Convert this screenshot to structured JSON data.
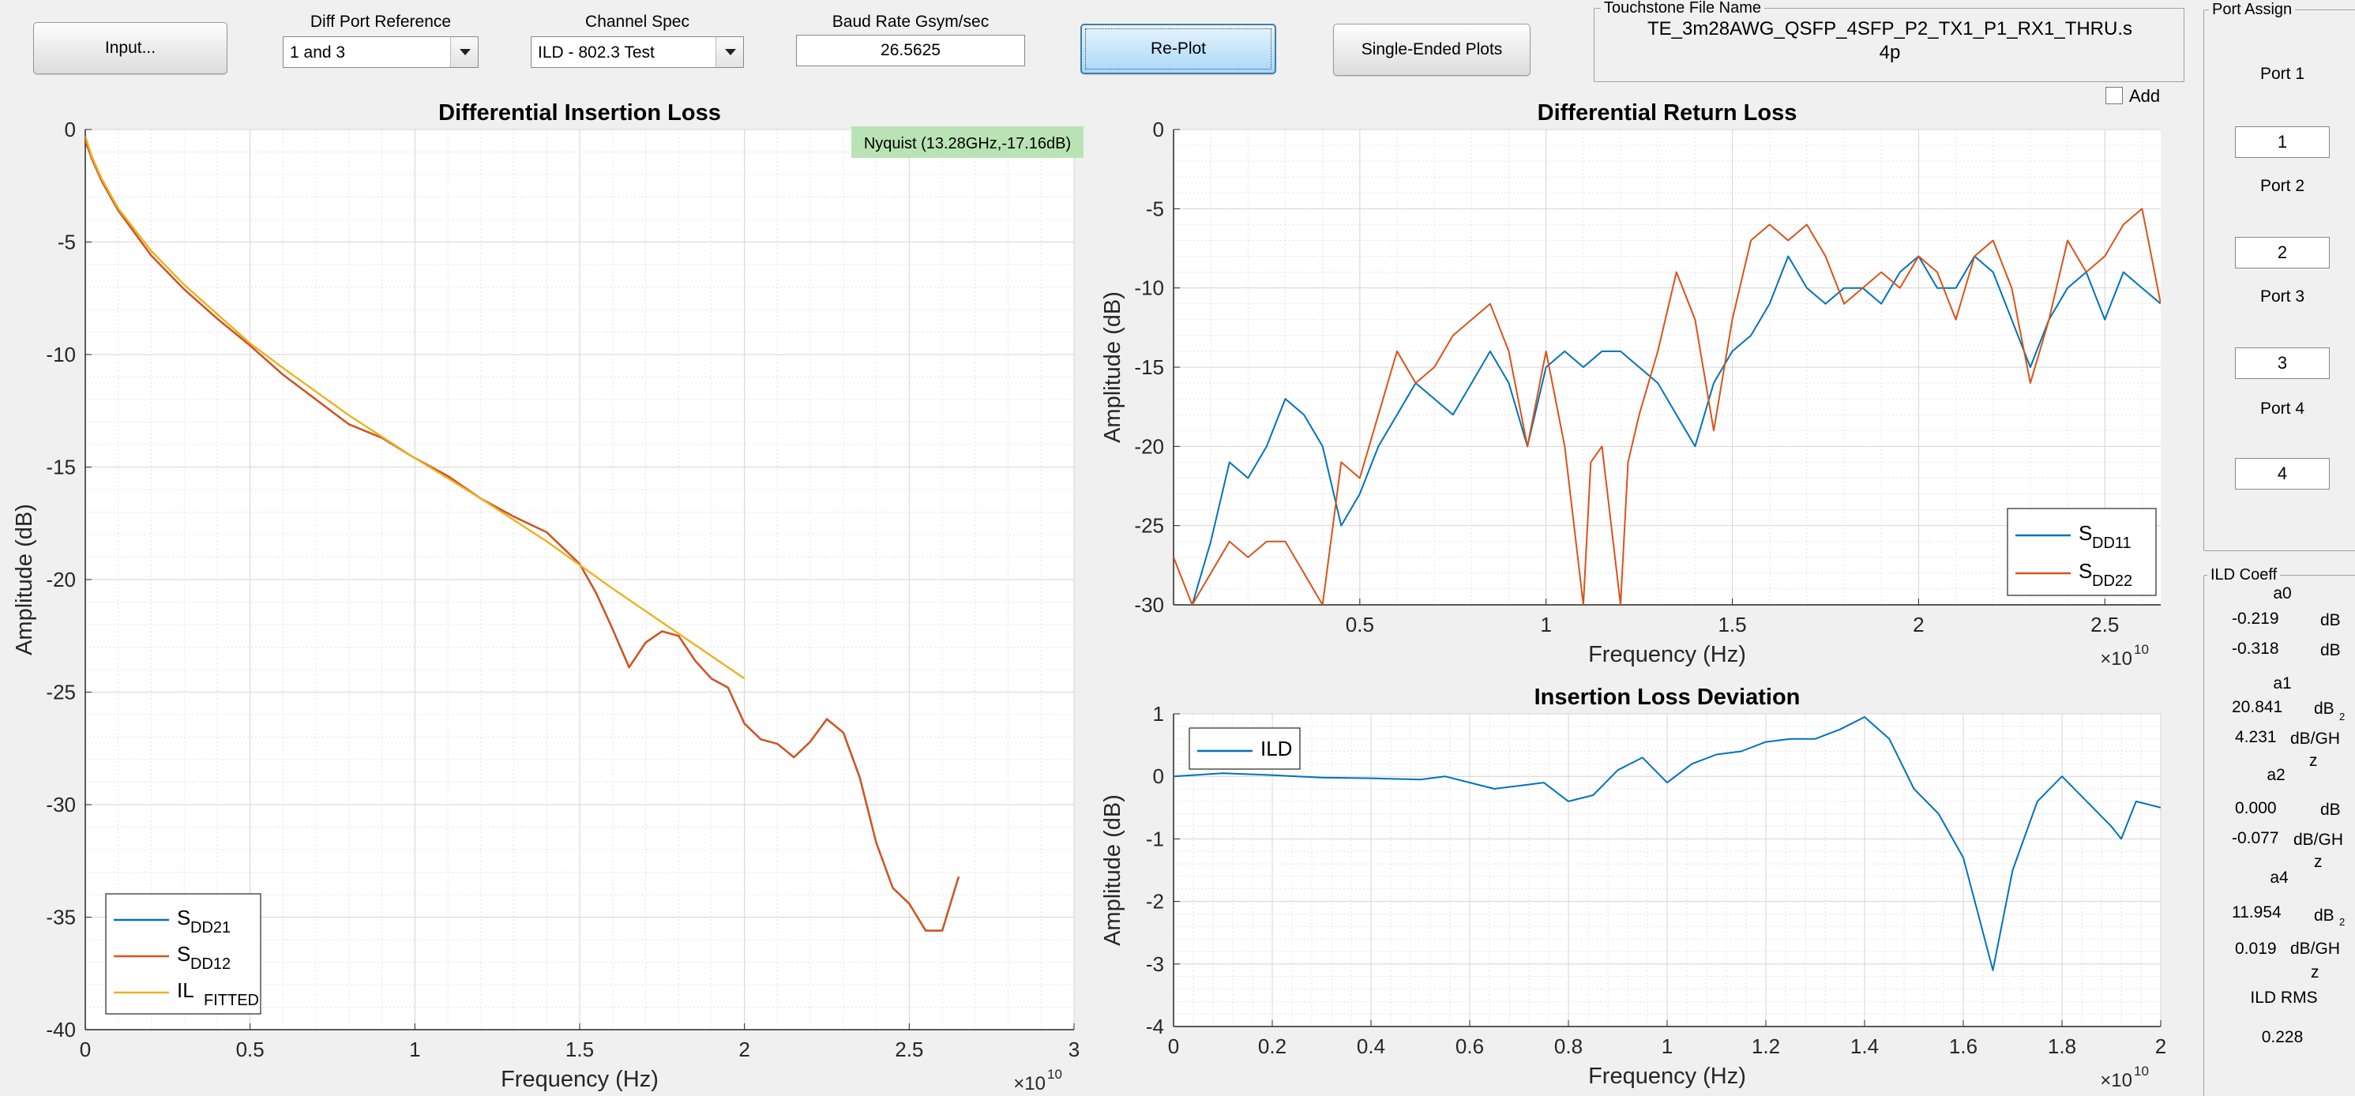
{
  "toolbar": {
    "input_label": "Input...",
    "diff_port_ref": {
      "label": "Diff Port Reference",
      "value": "1 and 3"
    },
    "channel_spec": {
      "label": "Channel Spec",
      "value": "ILD - 802.3 Test"
    },
    "baud_rate": {
      "label": "Baud Rate Gsym/sec",
      "value": "26.5625"
    },
    "replot_label": "Re-Plot",
    "single_ended_label": "Single-Ended Plots",
    "touchstone": {
      "label": "Touchstone File Name",
      "line1": "TE_3m28AWG_QSFP_4SFP_P2_TX1_P1_RX1_THRU.s",
      "line2": "4p"
    },
    "add_label": "Add"
  },
  "port_assign": {
    "title": "Port Assign",
    "ports": [
      {
        "label": "Port 1",
        "value": "1"
      },
      {
        "label": "Port 2",
        "value": "2"
      },
      {
        "label": "Port 3",
        "value": "3"
      },
      {
        "label": "Port 4",
        "value": "4"
      }
    ]
  },
  "ild_coeff": {
    "title": "ILD Coeff",
    "a0": {
      "label": "a0",
      "v1": "-0.219",
      "u1": "dB",
      "v2": "-0.318",
      "u2": "dB"
    },
    "a1": {
      "label": "a1",
      "v1": "20.841",
      "u1": "dB",
      "v2": "4.231",
      "u2": "dB/GH",
      "u2b": "z",
      "sup": "2"
    },
    "a2": {
      "label": "a2",
      "v1": "0.000",
      "u1": "dB",
      "v2": "-0.077",
      "u2": "dB/GH",
      "u2b": "z"
    },
    "a4": {
      "label": "a4",
      "v1": "11.954",
      "u1": "dB",
      "v2": "0.019",
      "u2": "dB/GH",
      "u2b": "z",
      "sup": "2"
    },
    "rms_label": "ILD RMS",
    "rms_value": "0.228"
  },
  "chart_data": [
    {
      "type": "line",
      "title": "Differential Insertion Loss",
      "xlabel": "Frequency (Hz)",
      "ylabel": "Amplitude (dB)",
      "x_exponent": "×10",
      "x_exponent_power": "10",
      "xlim": [
        0,
        3
      ],
      "ylim": [
        -40,
        0
      ],
      "xticks": [
        0,
        0.5,
        1,
        1.5,
        2,
        2.5,
        3
      ],
      "xtick_labels": [
        "0",
        "0.5",
        "1",
        "1.5",
        "2",
        "2.5",
        "3"
      ],
      "yticks": [
        0,
        -5,
        -10,
        -15,
        -20,
        -25,
        -30,
        -35,
        -40
      ],
      "ytick_labels": [
        "0",
        "-5",
        "-10",
        "-15",
        "-20",
        "-25",
        "-30",
        "-35",
        "-40"
      ],
      "grid": true,
      "legend_position": "bottom-left",
      "annotation": "Nyquist (13.28GHz,-17.16dB)",
      "series": [
        {
          "name": "S",
          "name_sub": "DD21",
          "color": "#0072bd",
          "x": [
            0,
            0.02,
            0.05,
            0.1,
            0.2,
            0.3,
            0.4,
            0.5,
            0.6,
            0.7,
            0.8,
            0.9,
            1.0,
            1.1,
            1.2,
            1.3,
            1.4,
            1.5,
            1.55,
            1.6,
            1.65,
            1.7,
            1.75,
            1.8,
            1.85,
            1.9,
            1.95,
            2.0,
            2.05,
            2.1,
            2.15,
            2.2,
            2.25,
            2.3,
            2.35,
            2.4,
            2.45,
            2.5,
            2.55,
            2.6,
            2.65
          ],
          "y": [
            -0.5,
            -1.3,
            -2.3,
            -3.6,
            -5.6,
            -7.1,
            -8.4,
            -9.6,
            -10.9,
            -12,
            -13.1,
            -13.7,
            -14.6,
            -15.4,
            -16.4,
            -17.2,
            -17.9,
            -19.3,
            -20.6,
            -22.2,
            -23.9,
            -22.8,
            -22.3,
            -22.5,
            -23.6,
            -24.4,
            -24.8,
            -26.4,
            -27.1,
            -27.3,
            -27.9,
            -27.2,
            -26.2,
            -26.8,
            -28.8,
            -31.7,
            -33.7,
            -34.4,
            -35.6,
            -35.6,
            -33.2
          ]
        },
        {
          "name": "S",
          "name_sub": "DD12",
          "color": "#d95319",
          "x": [
            0,
            0.02,
            0.05,
            0.1,
            0.2,
            0.3,
            0.4,
            0.5,
            0.6,
            0.7,
            0.8,
            0.9,
            1.0,
            1.1,
            1.2,
            1.3,
            1.4,
            1.5,
            1.55,
            1.6,
            1.65,
            1.7,
            1.75,
            1.8,
            1.85,
            1.9,
            1.95,
            2.0,
            2.05,
            2.1,
            2.15,
            2.2,
            2.25,
            2.3,
            2.35,
            2.4,
            2.45,
            2.5,
            2.55,
            2.6,
            2.65
          ],
          "y": [
            -0.5,
            -1.3,
            -2.3,
            -3.6,
            -5.6,
            -7.1,
            -8.4,
            -9.6,
            -10.9,
            -12,
            -13.1,
            -13.7,
            -14.6,
            -15.4,
            -16.4,
            -17.2,
            -17.9,
            -19.3,
            -20.6,
            -22.2,
            -23.9,
            -22.8,
            -22.3,
            -22.5,
            -23.6,
            -24.4,
            -24.8,
            -26.4,
            -27.1,
            -27.3,
            -27.9,
            -27.2,
            -26.2,
            -26.8,
            -28.8,
            -31.7,
            -33.7,
            -34.4,
            -35.6,
            -35.6,
            -33.2
          ]
        },
        {
          "name": "IL",
          "name_sub": "FITTED",
          "color": "#edb120",
          "x": [
            0,
            0.02,
            0.05,
            0.1,
            0.2,
            0.3,
            0.4,
            0.5,
            0.6,
            0.8,
            1.0,
            1.2,
            1.4,
            1.6,
            1.8,
            2.0
          ],
          "y": [
            -0.3,
            -1.2,
            -2.2,
            -3.5,
            -5.4,
            -6.9,
            -8.2,
            -9.5,
            -10.6,
            -12.7,
            -14.6,
            -16.4,
            -18.3,
            -20.4,
            -22.4,
            -24.4
          ]
        }
      ]
    },
    {
      "type": "line",
      "title": "Differential Return Loss",
      "xlabel": "Frequency (Hz)",
      "ylabel": "Amplitude (dB)",
      "x_exponent": "×10",
      "x_exponent_power": "10",
      "xlim": [
        0,
        2.65
      ],
      "ylim": [
        -30,
        0
      ],
      "xticks": [
        0.5,
        1,
        1.5,
        2,
        2.5
      ],
      "xtick_labels": [
        "0.5",
        "1",
        "1.5",
        "2",
        "2.5"
      ],
      "yticks": [
        0,
        -5,
        -10,
        -15,
        -20,
        -25,
        -30
      ],
      "ytick_labels": [
        "0",
        "-5",
        "-10",
        "-15",
        "-20",
        "-25",
        "-30"
      ],
      "grid": true,
      "legend_position": "bottom-right",
      "series": [
        {
          "name": "S",
          "name_sub": "DD11",
          "color": "#0072bd",
          "x": [
            0.05,
            0.1,
            0.15,
            0.2,
            0.25,
            0.3,
            0.35,
            0.4,
            0.45,
            0.5,
            0.55,
            0.6,
            0.65,
            0.7,
            0.75,
            0.8,
            0.85,
            0.9,
            0.95,
            1.0,
            1.05,
            1.1,
            1.15,
            1.2,
            1.25,
            1.3,
            1.35,
            1.4,
            1.45,
            1.5,
            1.55,
            1.6,
            1.65,
            1.7,
            1.75,
            1.8,
            1.85,
            1.9,
            1.95,
            2.0,
            2.05,
            2.1,
            2.15,
            2.2,
            2.25,
            2.3,
            2.35,
            2.4,
            2.45,
            2.5,
            2.55,
            2.6,
            2.65
          ],
          "y": [
            -30,
            -26,
            -21,
            -22,
            -20,
            -17,
            -18,
            -20,
            -25,
            -23,
            -20,
            -18,
            -16,
            -17,
            -18,
            -16,
            -14,
            -16,
            -20,
            -15,
            -14,
            -15,
            -14,
            -14,
            -15,
            -16,
            -18,
            -20,
            -16,
            -14,
            -13,
            -11,
            -8,
            -10,
            -11,
            -10,
            -10,
            -11,
            -9,
            -8,
            -10,
            -10,
            -8,
            -9,
            -12,
            -15,
            -12,
            -10,
            -9,
            -12,
            -9,
            -10,
            -11
          ]
        },
        {
          "name": "S",
          "name_sub": "DD22",
          "color": "#d95319",
          "x": [
            0.0,
            0.05,
            0.1,
            0.15,
            0.2,
            0.25,
            0.3,
            0.35,
            0.4,
            0.45,
            0.5,
            0.55,
            0.6,
            0.65,
            0.7,
            0.75,
            0.8,
            0.85,
            0.9,
            0.95,
            1.0,
            1.05,
            1.1,
            1.12,
            1.15,
            1.2,
            1.22,
            1.25,
            1.3,
            1.35,
            1.4,
            1.45,
            1.5,
            1.55,
            1.6,
            1.65,
            1.7,
            1.75,
            1.8,
            1.85,
            1.9,
            1.95,
            2.0,
            2.05,
            2.1,
            2.15,
            2.2,
            2.25,
            2.3,
            2.35,
            2.4,
            2.45,
            2.5,
            2.55,
            2.6,
            2.65
          ],
          "y": [
            -27,
            -30,
            -28,
            -26,
            -27,
            -26,
            -26,
            -28,
            -30,
            -21,
            -22,
            -18,
            -14,
            -16,
            -15,
            -13,
            -12,
            -11,
            -14,
            -20,
            -14,
            -20,
            -30,
            -21,
            -20,
            -30,
            -21,
            -18,
            -14,
            -9,
            -12,
            -19,
            -12,
            -7,
            -6,
            -7,
            -6,
            -8,
            -11,
            -10,
            -9,
            -10,
            -8,
            -9,
            -12,
            -8,
            -7,
            -10,
            -16,
            -12,
            -7,
            -9,
            -8,
            -6,
            -5,
            -11
          ]
        }
      ]
    },
    {
      "type": "line",
      "title": "Insertion Loss Deviation",
      "xlabel": "Frequency (Hz)",
      "ylabel": "Amplitude (dB)",
      "x_exponent": "×10",
      "x_exponent_power": "10",
      "xlim": [
        0,
        2
      ],
      "ylim": [
        -4,
        1
      ],
      "xticks": [
        0,
        0.2,
        0.4,
        0.6,
        0.8,
        1,
        1.2,
        1.4,
        1.6,
        1.8,
        2
      ],
      "xtick_labels": [
        "0",
        "0.2",
        "0.4",
        "0.6",
        "0.8",
        "1",
        "1.2",
        "1.4",
        "1.6",
        "1.8",
        "2"
      ],
      "yticks": [
        1,
        0,
        -1,
        -2,
        -3,
        -4
      ],
      "ytick_labels": [
        "1",
        "0",
        "-1",
        "-2",
        "-3",
        "-4"
      ],
      "grid": true,
      "legend_position": "top-left",
      "series": [
        {
          "name": "ILD",
          "color": "#0072bd",
          "x": [
            0,
            0.1,
            0.2,
            0.3,
            0.4,
            0.5,
            0.55,
            0.6,
            0.65,
            0.7,
            0.75,
            0.8,
            0.85,
            0.9,
            0.95,
            1.0,
            1.05,
            1.1,
            1.15,
            1.2,
            1.25,
            1.3,
            1.35,
            1.4,
            1.45,
            1.5,
            1.55,
            1.6,
            1.63,
            1.66,
            1.7,
            1.75,
            1.8,
            1.85,
            1.9,
            1.92,
            1.95,
            2.0
          ],
          "y": [
            0,
            0.05,
            0.02,
            -0.02,
            -0.03,
            -0.05,
            0,
            -0.1,
            -0.2,
            -0.15,
            -0.1,
            -0.4,
            -0.3,
            0.1,
            0.3,
            -0.1,
            0.2,
            0.35,
            0.4,
            0.55,
            0.6,
            0.6,
            0.75,
            0.95,
            0.6,
            -0.2,
            -0.6,
            -1.3,
            -2.2,
            -3.1,
            -1.5,
            -0.4,
            0,
            -0.4,
            -0.8,
            -1.0,
            -0.4,
            -0.5
          ]
        }
      ]
    }
  ]
}
